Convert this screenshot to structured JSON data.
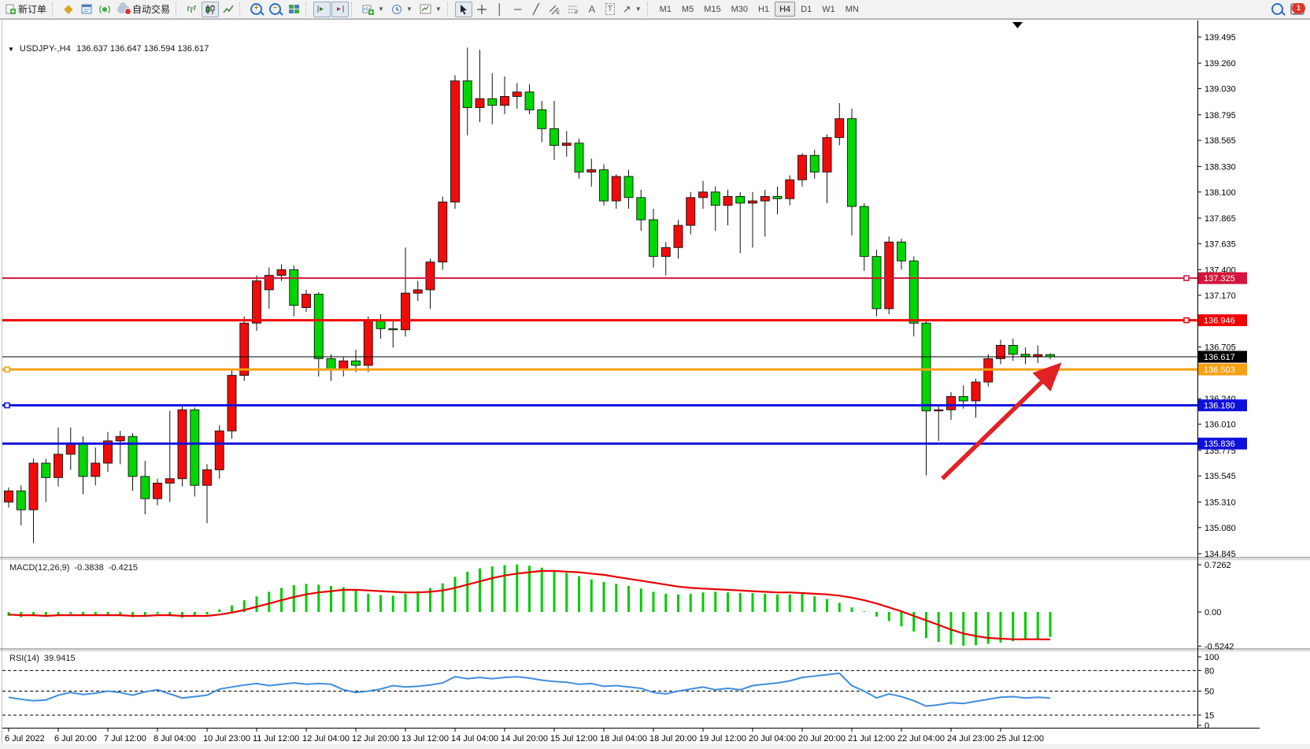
{
  "toolbar": {
    "new_order_label": "新订单",
    "auto_trading_label": "自动交易",
    "timeframes": [
      "M1",
      "M5",
      "M15",
      "M30",
      "H1",
      "H4",
      "D1",
      "W1",
      "MN"
    ],
    "active_timeframe": "H4",
    "notification_count": "1"
  },
  "chart": {
    "symbol_title": "USDJPY-,H4",
    "ohlc_line": "136.637 136.647 136.594 136.617"
  },
  "chart_data": {
    "type": "candlestick",
    "symbol": "USDJPY-",
    "timeframe": "H4",
    "title": "USDJPY-,H4  136.637 136.647 136.594 136.617",
    "ylim": [
      134.845,
      139.495
    ],
    "price_axis_ticks": [
      "139.495",
      "139.260",
      "139.030",
      "138.795",
      "138.565",
      "138.330",
      "138.100",
      "137.865",
      "137.635",
      "137.400",
      "137.170",
      "136.705",
      "136.240",
      "136.010",
      "135.775",
      "135.545",
      "135.310",
      "135.080",
      "134.845"
    ],
    "time_axis_labels": [
      "6 Jul 2022",
      "6 Jul 20:00",
      "7 Jul 12:00",
      "8 Jul 04:00",
      "10 Jul 23:00",
      "11 Jul 12:00",
      "12 Jul 04:00",
      "12 Jul 20:00",
      "13 Jul 12:00",
      "14 Jul 04:00",
      "14 Jul 20:00",
      "15 Jul 12:00",
      "18 Jul 04:00",
      "18 Jul 20:00",
      "19 Jul 12:00",
      "20 Jul 04:00",
      "20 Jul 20:00",
      "21 Jul 12:00",
      "22 Jul 04:00",
      "24 Jul 23:00",
      "25 Jul 12:00"
    ],
    "candles": [
      [
        135.31,
        135.44,
        135.26,
        135.41
      ],
      [
        135.41,
        135.46,
        135.1,
        135.24
      ],
      [
        135.24,
        135.7,
        134.94,
        135.66
      ],
      [
        135.66,
        135.7,
        135.31,
        135.53
      ],
      [
        135.53,
        135.98,
        135.45,
        135.74
      ],
      [
        135.74,
        135.98,
        135.6,
        135.84
      ],
      [
        135.84,
        135.9,
        135.38,
        135.54
      ],
      [
        135.54,
        135.8,
        135.46,
        135.66
      ],
      [
        135.66,
        135.94,
        135.58,
        135.86
      ],
      [
        135.86,
        135.95,
        135.65,
        135.9
      ],
      [
        135.9,
        135.93,
        135.41,
        135.54
      ],
      [
        135.54,
        135.68,
        135.2,
        135.34
      ],
      [
        135.34,
        135.52,
        135.28,
        135.48
      ],
      [
        135.48,
        136.13,
        135.31,
        135.52
      ],
      [
        135.52,
        136.18,
        135.45,
        136.14
      ],
      [
        136.14,
        136.16,
        135.36,
        135.46
      ],
      [
        135.46,
        135.65,
        135.12,
        135.6
      ],
      [
        135.6,
        136.0,
        135.52,
        135.95
      ],
      [
        135.95,
        136.5,
        135.88,
        136.45
      ],
      [
        136.45,
        136.98,
        136.4,
        136.92
      ],
      [
        136.92,
        137.35,
        136.85,
        137.3
      ],
      [
        137.22,
        137.42,
        137.05,
        137.35
      ],
      [
        137.35,
        137.45,
        137.3,
        137.4
      ],
      [
        137.4,
        137.44,
        136.98,
        137.08
      ],
      [
        137.06,
        137.22,
        137.02,
        137.18
      ],
      [
        137.18,
        137.2,
        136.44,
        136.6
      ],
      [
        136.6,
        136.64,
        136.4,
        136.5
      ],
      [
        136.5,
        136.62,
        136.44,
        136.58
      ],
      [
        136.58,
        136.68,
        136.48,
        136.54
      ],
      [
        136.54,
        136.98,
        136.48,
        136.95
      ],
      [
        136.95,
        137.0,
        136.78,
        136.87
      ],
      [
        136.87,
        136.94,
        136.7,
        136.86
      ],
      [
        136.86,
        137.6,
        136.8,
        137.19
      ],
      [
        137.19,
        137.3,
        137.12,
        137.22
      ],
      [
        137.22,
        137.5,
        137.05,
        137.47
      ],
      [
        137.47,
        138.06,
        137.4,
        138.01
      ],
      [
        138.01,
        139.15,
        137.95,
        139.1
      ],
      [
        139.1,
        139.4,
        138.61,
        138.86
      ],
      [
        138.86,
        139.38,
        138.73,
        138.94
      ],
      [
        138.94,
        139.17,
        138.71,
        138.88
      ],
      [
        138.88,
        139.14,
        138.8,
        138.96
      ],
      [
        138.96,
        139.08,
        138.85,
        139.0
      ],
      [
        139.0,
        139.07,
        138.8,
        138.84
      ],
      [
        138.84,
        138.92,
        138.55,
        138.67
      ],
      [
        138.67,
        138.92,
        138.39,
        138.52
      ],
      [
        138.52,
        138.65,
        138.42,
        138.54
      ],
      [
        138.54,
        138.58,
        138.22,
        138.28
      ],
      [
        138.28,
        138.4,
        138.15,
        138.3
      ],
      [
        138.3,
        138.35,
        137.98,
        138.02
      ],
      [
        138.02,
        138.26,
        137.95,
        138.24
      ],
      [
        138.24,
        138.3,
        137.95,
        138.05
      ],
      [
        138.05,
        138.12,
        137.75,
        137.85
      ],
      [
        137.85,
        137.95,
        137.42,
        137.52
      ],
      [
        137.52,
        137.65,
        137.35,
        137.6
      ],
      [
        137.6,
        137.85,
        137.5,
        137.8
      ],
      [
        137.8,
        138.1,
        137.72,
        138.05
      ],
      [
        138.05,
        138.2,
        137.95,
        138.1
      ],
      [
        138.1,
        138.15,
        137.75,
        137.98
      ],
      [
        137.98,
        138.12,
        137.8,
        138.06
      ],
      [
        138.06,
        138.1,
        137.55,
        138.0
      ],
      [
        138.0,
        138.1,
        137.6,
        138.02
      ],
      [
        138.02,
        138.12,
        137.7,
        138.06
      ],
      [
        138.06,
        138.15,
        137.9,
        138.04
      ],
      [
        138.04,
        138.25,
        137.98,
        138.21
      ],
      [
        138.21,
        138.45,
        138.15,
        138.43
      ],
      [
        138.43,
        138.48,
        138.22,
        138.28
      ],
      [
        138.28,
        138.62,
        138.0,
        138.59
      ],
      [
        138.59,
        138.9,
        138.52,
        138.76
      ],
      [
        138.76,
        138.85,
        137.71,
        137.97
      ],
      [
        137.97,
        138.0,
        137.39,
        137.52
      ],
      [
        137.52,
        137.58,
        136.98,
        137.05
      ],
      [
        137.05,
        137.7,
        137.0,
        137.65
      ],
      [
        137.65,
        137.68,
        137.4,
        137.48
      ],
      [
        137.48,
        137.52,
        136.8,
        136.92
      ],
      [
        136.92,
        136.95,
        135.55,
        136.13
      ],
      [
        136.13,
        136.18,
        135.86,
        136.14
      ],
      [
        136.14,
        136.3,
        136.05,
        136.26
      ],
      [
        136.26,
        136.36,
        136.15,
        136.22
      ],
      [
        136.22,
        136.42,
        136.07,
        136.39
      ],
      [
        136.39,
        136.64,
        136.35,
        136.6
      ],
      [
        136.6,
        136.77,
        136.55,
        136.72
      ],
      [
        136.72,
        136.78,
        136.58,
        136.64
      ],
      [
        136.64,
        136.7,
        136.55,
        136.62
      ],
      [
        136.62,
        136.72,
        136.56,
        136.637
      ],
      [
        136.637,
        136.647,
        136.594,
        136.617
      ]
    ],
    "horizontal_lines": [
      {
        "price": 137.325,
        "label": "137.325",
        "color": "#d4143c",
        "width": 2,
        "handle": "right"
      },
      {
        "price": 136.946,
        "label": "136.946",
        "color": "#f20000",
        "width": 3,
        "handle": "right"
      },
      {
        "price": 136.503,
        "label": "136.503",
        "color": "#f7a013",
        "width": 3,
        "handle": "left"
      },
      {
        "price": 136.18,
        "label": "136.180",
        "color": "#1010dd",
        "width": 3,
        "handle": "left"
      },
      {
        "price": 135.836,
        "label": "135.836",
        "color": "#1010dd",
        "width": 3,
        "handle": "none"
      },
      {
        "price": 136.617,
        "label": "136.617",
        "color": "#000000",
        "width": 1,
        "handle": "none",
        "is_current_price": true
      }
    ],
    "current_price_label": "136.617",
    "annotations": [
      {
        "type": "arrow",
        "color": "#e02227",
        "from": {
          "index": 75.3,
          "price": 135.52
        },
        "to": {
          "index": 84.6,
          "price": 136.53
        }
      }
    ],
    "indicators": {
      "macd": {
        "label": "MACD(12,26,9)",
        "value_text": "-0.3838",
        "signal_text": "-0.4215",
        "axis_ticks": [
          "0.7262",
          "0.00",
          "-0.5242"
        ],
        "axis_tick_values": [
          0.7262,
          0.0,
          -0.5242
        ],
        "histogram": [
          -0.06,
          -0.08,
          -0.05,
          -0.07,
          -0.04,
          -0.03,
          -0.06,
          -0.05,
          -0.04,
          -0.06,
          -0.08,
          -0.05,
          -0.03,
          -0.06,
          -0.09,
          -0.07,
          -0.04,
          0.04,
          0.1,
          0.18,
          0.24,
          0.31,
          0.37,
          0.41,
          0.43,
          0.42,
          0.4,
          0.38,
          0.33,
          0.28,
          0.26,
          0.25,
          0.28,
          0.32,
          0.37,
          0.44,
          0.54,
          0.62,
          0.67,
          0.7,
          0.72,
          0.73,
          0.71,
          0.68,
          0.64,
          0.6,
          0.55,
          0.5,
          0.46,
          0.43,
          0.4,
          0.36,
          0.31,
          0.28,
          0.27,
          0.28,
          0.3,
          0.31,
          0.3,
          0.29,
          0.29,
          0.28,
          0.27,
          0.27,
          0.28,
          0.24,
          0.2,
          0.14,
          0.07,
          0.01,
          -0.07,
          -0.14,
          -0.22,
          -0.3,
          -0.4,
          -0.46,
          -0.5,
          -0.52,
          -0.51,
          -0.49,
          -0.47,
          -0.45,
          -0.43,
          -0.41,
          -0.3838
        ],
        "signal": [
          -0.04,
          -0.05,
          -0.05,
          -0.06,
          -0.05,
          -0.05,
          -0.05,
          -0.05,
          -0.05,
          -0.05,
          -0.06,
          -0.06,
          -0.05,
          -0.05,
          -0.06,
          -0.06,
          -0.06,
          -0.04,
          -0.01,
          0.03,
          0.08,
          0.13,
          0.18,
          0.23,
          0.27,
          0.3,
          0.32,
          0.34,
          0.34,
          0.33,
          0.32,
          0.31,
          0.3,
          0.3,
          0.31,
          0.33,
          0.37,
          0.42,
          0.47,
          0.52,
          0.56,
          0.59,
          0.61,
          0.63,
          0.63,
          0.62,
          0.61,
          0.59,
          0.57,
          0.54,
          0.51,
          0.48,
          0.45,
          0.42,
          0.39,
          0.37,
          0.36,
          0.35,
          0.34,
          0.33,
          0.32,
          0.31,
          0.3,
          0.3,
          0.29,
          0.28,
          0.27,
          0.25,
          0.22,
          0.18,
          0.13,
          0.07,
          0.01,
          -0.06,
          -0.13,
          -0.2,
          -0.27,
          -0.33,
          -0.37,
          -0.4,
          -0.41,
          -0.42,
          -0.42,
          -0.42,
          -0.4215
        ]
      },
      "rsi": {
        "label": "RSI(14)",
        "value_text": "39.9415",
        "axis_ticks": [
          "100",
          "80",
          "50",
          "15",
          "0"
        ],
        "axis_tick_values": [
          100,
          80,
          50,
          15,
          0
        ],
        "level_lines": [
          80,
          50,
          15
        ],
        "values": [
          41,
          38,
          36,
          37,
          44,
          48,
          45,
          47,
          50,
          48,
          44,
          49,
          52,
          46,
          40,
          42,
          44,
          53,
          56,
          59,
          61,
          58,
          60,
          62,
          60,
          61,
          60,
          52,
          48,
          50,
          53,
          58,
          56,
          57,
          59,
          62,
          71,
          68,
          70,
          68,
          70,
          71,
          69,
          66,
          64,
          63,
          60,
          61,
          57,
          58,
          56,
          54,
          48,
          46,
          50,
          53,
          56,
          52,
          54,
          52,
          58,
          60,
          62,
          65,
          70,
          72,
          74,
          76,
          58,
          50,
          40,
          46,
          42,
          36,
          28,
          30,
          33,
          32,
          35,
          38,
          41,
          42,
          40,
          41,
          39.94
        ]
      }
    },
    "colors": {
      "bull": "#f20b0b",
      "bear": "#00d600",
      "wick": "#111111",
      "candle_border": "#111111",
      "macd_histogram": "#00cc00",
      "macd_signal": "#e80000",
      "rsi_line": "#3f8ede",
      "arrow": "#e02227",
      "axis_text": "#000000"
    }
  }
}
